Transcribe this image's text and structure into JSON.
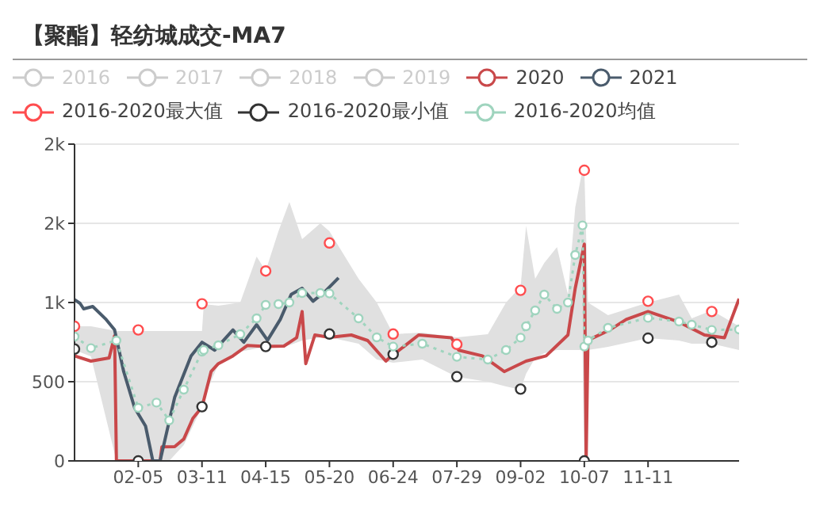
{
  "chart_data": {
    "type": "line",
    "title": "【聚酯】轻纺城成交-MA7",
    "legend": "top",
    "grid": "y",
    "xlim": [
      "--01-01",
      "--12-31"
    ],
    "xticks": [
      {
        "value": "--02-05",
        "label": "02-05"
      },
      {
        "value": "--03-11",
        "label": "03-11"
      },
      {
        "value": "--04-15",
        "label": "04-15"
      },
      {
        "value": "--05-20",
        "label": "05-20"
      },
      {
        "value": "--06-24",
        "label": "06-24"
      },
      {
        "value": "--07-29",
        "label": "07-29"
      },
      {
        "value": "--09-02",
        "label": "09-02"
      },
      {
        "value": "--10-07",
        "label": "10-07"
      },
      {
        "value": "--11-11",
        "label": "11-11"
      }
    ],
    "ylim": [
      0,
      2000
    ],
    "yticks": [
      0,
      500,
      {
        "value": 1000,
        "label": "1k"
      },
      {
        "value": 1500,
        "label": "2k"
      },
      {
        "value": 2000,
        "label": "2k"
      }
    ],
    "series": [
      {
        "name": "2016",
        "color": "#cccccc"
      },
      {
        "name": "2017",
        "color": "#cccccc"
      },
      {
        "name": "2018",
        "color": "#cccccc"
      },
      {
        "name": "2019",
        "color": "#cccccc"
      },
      {
        "name": "2020",
        "color": "#c9484a",
        "marker": "none",
        "line_style": "solid",
        "x": [
          "--01-01",
          "--01-10",
          "--01-20",
          "--01-23",
          "--01-24",
          "--02-17",
          "--02-18",
          "--02-25",
          "--03-01",
          "--03-06",
          "--03-11",
          "--03-16",
          "--03-20",
          "--03-28",
          "--04-05",
          "--04-15",
          "--04-25",
          "--05-02",
          "--05-05",
          "--05-07",
          "--05-12",
          "--05-20",
          "--06-01",
          "--06-10",
          "--06-20",
          "--06-24",
          "--06-27",
          "--07-08",
          "--07-26",
          "--07-30",
          "--08-12",
          "--08-24",
          "--09-05",
          "--09-16",
          "--09-28",
          "--10-02",
          "--10-07",
          "--10-08",
          "--10-09",
          "--10-21",
          "--10-30",
          "--11-11",
          "--11-28",
          "--12-12",
          "--12-23",
          "--12-31"
        ],
        "values": [
          663,
          630,
          650,
          790,
          0,
          0,
          89,
          90,
          138,
          269,
          340,
          564,
          614,
          663,
          729,
          722,
          725,
          778,
          943,
          614,
          795,
          780,
          795,
          760,
          630,
          673,
          696,
          795,
          778,
          699,
          663,
          564,
          630,
          663,
          795,
          1090,
          1369,
          0,
          762,
          827,
          893,
          943,
          877,
          795,
          778,
          1024
        ]
      },
      {
        "name": "2021",
        "color": "#4a5b6c",
        "marker": "none",
        "line_style": "solid",
        "x": [
          "--01-01",
          "--01-04",
          "--01-06",
          "--01-11",
          "--01-18",
          "--01-23",
          "--01-28",
          "--02-03",
          "--02-09",
          "--02-13",
          "--02-17",
          "--02-25",
          "--03-05",
          "--03-11",
          "--03-18",
          "--03-28",
          "--04-03",
          "--04-10",
          "--04-16",
          "--04-23",
          "--04-29",
          "--05-05",
          "--05-11",
          "--05-18",
          "--05-25"
        ],
        "values": [
          1018,
          995,
          960,
          975,
          897,
          827,
          564,
          335,
          220,
          0,
          0,
          401,
          663,
          749,
          699,
          827,
          749,
          860,
          762,
          893,
          1051,
          1090,
          1008,
          1074,
          1156
        ]
      },
      {
        "name": "2016-2020最大值",
        "type": "scatter",
        "color": "#ff4d4f",
        "marker": "circle",
        "x": [
          "--01-01",
          "--02-05",
          "--03-11",
          "--04-15",
          "--05-20",
          "--06-24",
          "--07-29",
          "--09-02",
          "--10-07",
          "--11-11",
          "--12-16"
        ],
        "values": [
          850,
          827,
          992,
          1199,
          1376,
          801,
          736,
          1077,
          1835,
          1008,
          943
        ]
      },
      {
        "name": "2016-2020最小值",
        "type": "scatter",
        "color": "#333333",
        "marker": "circle",
        "x": [
          "--01-01",
          "--02-05",
          "--03-11",
          "--04-15",
          "--05-20",
          "--06-24",
          "--07-29",
          "--09-02",
          "--10-07",
          "--11-11",
          "--12-16"
        ],
        "values": [
          706,
          0,
          342,
          722,
          801,
          673,
          532,
          453,
          0,
          775,
          749
        ]
      },
      {
        "name": "2016-2020均值",
        "color": "#9fd4be",
        "marker": "circle",
        "line_style": "dotted",
        "x": [
          "--01-01",
          "--01-10",
          "--01-24",
          "--02-05",
          "--02-15",
          "--02-22",
          "--03-01",
          "--03-11",
          "--03-12",
          "--03-20",
          "--04-01",
          "--04-10",
          "--04-15",
          "--04-22",
          "--04-28",
          "--05-05",
          "--05-15",
          "--05-20",
          "--06-05",
          "--06-15",
          "--06-24",
          "--07-10",
          "--07-29",
          "--08-15",
          "--08-25",
          "--09-02",
          "--09-05",
          "--09-10",
          "--09-15",
          "--09-22",
          "--09-28",
          "--10-02",
          "--10-06",
          "--10-07",
          "--10-09",
          "--10-20",
          "--11-11",
          "--11-28",
          "--12-05",
          "--12-16",
          "--12-31"
        ],
        "values": [
          785,
          712,
          760,
          335,
          368,
          256,
          450,
          690,
          700,
          730,
          800,
          900,
          985,
          990,
          1000,
          1060,
          1060,
          1057,
          900,
          780,
          722,
          740,
          657,
          640,
          700,
          778,
          850,
          950,
          1050,
          960,
          1000,
          1300,
          1487,
          722,
          760,
          840,
          903,
          880,
          860,
          827,
          830
        ],
        "lower": [
          700,
          660,
          0,
          0,
          0,
          0,
          100,
          340,
          400,
          610,
          690,
          710,
          720,
          720,
          730,
          760,
          780,
          780,
          740,
          640,
          620,
          640,
          530,
          500,
          470,
          450,
          550,
          650,
          680,
          700,
          700,
          700,
          700,
          0,
          700,
          720,
          775,
          760,
          740,
          740,
          700
        ],
        "upper": [
          850,
          850,
          820,
          820,
          820,
          820,
          820,
          820,
          990,
          980,
          1000,
          1290,
          1200,
          1450,
          1635,
          1400,
          1500,
          1450,
          1150,
          1000,
          800,
          810,
          780,
          800,
          1000,
          1100,
          1484,
          1150,
          1250,
          1350,
          1050,
          1600,
          1840,
          1840,
          1000,
          920,
          1000,
          1050,
          900,
          950,
          850
        ]
      }
    ]
  }
}
